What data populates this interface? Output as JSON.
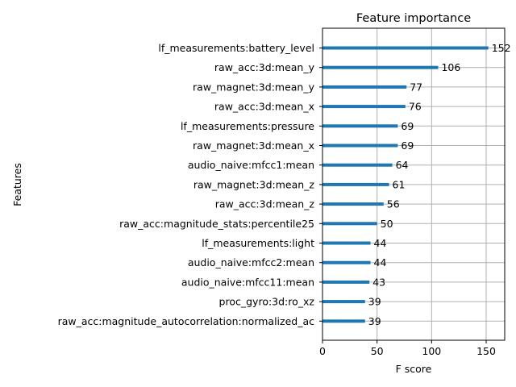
{
  "chart_data": {
    "type": "bar",
    "orientation": "horizontal",
    "title": "Feature importance",
    "xlabel": "F score",
    "ylabel": "Features",
    "xlim": [
      0,
      167
    ],
    "xticks": [
      0,
      50,
      100,
      150
    ],
    "grid": true,
    "bar_color": "#1f77b4",
    "categories": [
      "lf_measurements:battery_level",
      "raw_acc:3d:mean_y",
      "raw_magnet:3d:mean_y",
      "raw_acc:3d:mean_x",
      "lf_measurements:pressure",
      "raw_magnet:3d:mean_x",
      "audio_naive:mfcc1:mean",
      "raw_magnet:3d:mean_z",
      "raw_acc:3d:mean_z",
      "raw_acc:magnitude_stats:percentile25",
      "lf_measurements:light",
      "audio_naive:mfcc2:mean",
      "audio_naive:mfcc11:mean",
      "proc_gyro:3d:ro_xz",
      "raw_acc:magnitude_autocorrelation:normalized_ac"
    ],
    "values": [
      152,
      106,
      77,
      76,
      69,
      69,
      64,
      61,
      56,
      50,
      44,
      44,
      43,
      39,
      39
    ]
  }
}
